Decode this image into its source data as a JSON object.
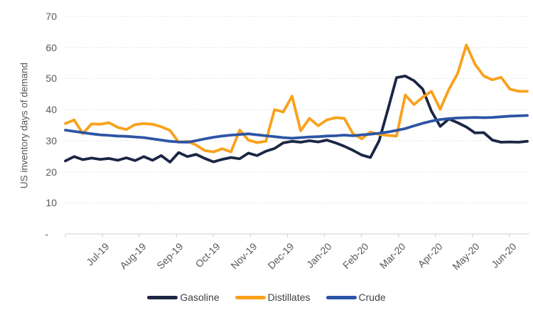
{
  "chart_data": {
    "type": "line",
    "frequency": "weekly",
    "title": "",
    "xlabel": "",
    "ylabel": "US inventory days of demand",
    "ylim": [
      0,
      70
    ],
    "y_tick_interval": 10,
    "y_tick_labels": [
      "-",
      "10",
      "20",
      "30",
      "40",
      "50",
      "60",
      "70"
    ],
    "x_tick_labels": [
      "Jul-19",
      "Aug-19",
      "Sep-19",
      "Oct-19",
      "Nov-19",
      "Dec-19",
      "Jan-20",
      "Feb-20",
      "Mar-20",
      "Apr-20",
      "May-20",
      "Jun-20"
    ],
    "grid": "horizontal-dotted",
    "legend_position": "bottom-center",
    "series": [
      {
        "name": "Gasoline",
        "color": "#1B2645",
        "values": [
          23.5,
          24.9,
          23.9,
          24.4,
          24.0,
          24.3,
          23.7,
          24.5,
          23.6,
          24.9,
          23.7,
          25.2,
          23.1,
          26.2,
          24.9,
          25.6,
          24.3,
          23.2,
          24.0,
          24.6,
          24.2,
          26.0,
          25.2,
          26.6,
          27.5,
          29.3,
          29.8,
          29.5,
          30.0,
          29.6,
          30.2,
          29.3,
          28.2,
          26.9,
          25.4,
          24.6,
          30.0,
          40.0,
          50.3,
          50.8,
          49.3,
          46.6,
          39.5,
          34.6,
          37.0,
          35.8,
          34.4,
          32.5,
          32.6,
          30.2,
          29.5,
          29.6,
          29.5,
          29.8
        ]
      },
      {
        "name": "Distillates",
        "color": "#F9A11B",
        "values": [
          35.5,
          36.7,
          32.3,
          35.4,
          35.3,
          35.8,
          34.3,
          33.6,
          35.2,
          35.5,
          35.3,
          34.5,
          33.3,
          29.5,
          29.8,
          28.6,
          26.8,
          26.4,
          27.4,
          26.4,
          33.4,
          30.2,
          29.4,
          29.8,
          40.0,
          39.2,
          44.3,
          33.2,
          37.2,
          34.8,
          36.7,
          37.4,
          37.2,
          32.2,
          30.6,
          32.8,
          32.0,
          31.7,
          31.5,
          44.7,
          41.6,
          44.0,
          45.9,
          40.1,
          46.5,
          51.6,
          60.8,
          54.6,
          50.8,
          49.6,
          50.4,
          46.6,
          45.9,
          45.9
        ]
      },
      {
        "name": "Crude",
        "color": "#2D55A5",
        "values": [
          33.4,
          33.0,
          32.6,
          32.2,
          31.9,
          31.7,
          31.5,
          31.4,
          31.2,
          31.0,
          30.6,
          30.2,
          29.8,
          29.6,
          29.5,
          30.0,
          30.6,
          31.1,
          31.5,
          31.8,
          32.0,
          32.2,
          31.9,
          31.6,
          31.3,
          31.0,
          30.8,
          31.0,
          31.2,
          31.3,
          31.5,
          31.6,
          31.8,
          31.6,
          31.9,
          32.1,
          32.4,
          32.8,
          33.3,
          33.9,
          34.8,
          35.6,
          36.3,
          36.8,
          37.1,
          37.3,
          37.4,
          37.5,
          37.4,
          37.5,
          37.7,
          37.9,
          38.0,
          38.1
        ]
      }
    ],
    "style": {
      "grid_color": "#D9D9D9",
      "axis_color": "#D9D9D9",
      "tick_text_color": "#595959",
      "legend_text_color": "#404040",
      "background": "#FFFFFF"
    }
  }
}
